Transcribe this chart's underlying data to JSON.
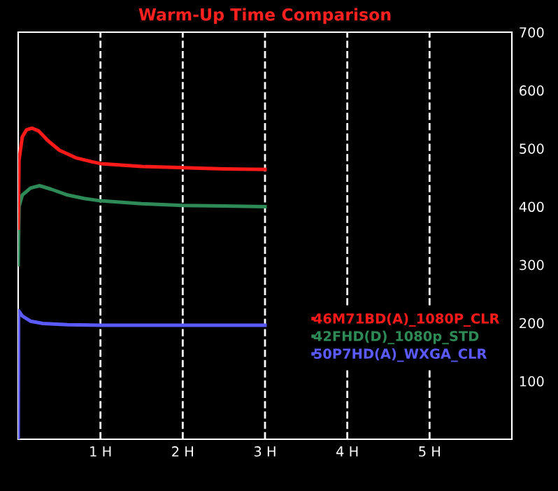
{
  "chart_data": {
    "type": "line",
    "title": "Warm-Up Time Comparison",
    "xlim": [
      0,
      6
    ],
    "xticks": [
      {
        "value": 1,
        "label": "1 H"
      },
      {
        "value": 2,
        "label": "2 H"
      },
      {
        "value": 3,
        "label": "3 H"
      },
      {
        "value": 4,
        "label": "4 H"
      },
      {
        "value": 5,
        "label": "5 H"
      }
    ],
    "ylim": [
      0,
      700
    ],
    "yticks": [
      100,
      200,
      300,
      400,
      500,
      600,
      700
    ],
    "grid": "x",
    "legend": "bottom right",
    "marker": "none",
    "line_style": "solid",
    "series": [
      {
        "name": "46M71BD(A)_1080P_CLR",
        "color": "#ff1a1a",
        "x": [
          0,
          0.01,
          0.05,
          0.1,
          0.17,
          0.25,
          0.35,
          0.5,
          0.7,
          0.9,
          1.0,
          1.5,
          2.0,
          2.5,
          3.0
        ],
        "values": [
          363,
          480,
          520,
          532,
          535,
          530,
          515,
          497,
          484,
          477,
          474,
          469,
          467,
          465,
          464
        ]
      },
      {
        "name": "42FHD(D)_1080p_STD",
        "color": "#2e8b57",
        "x": [
          0,
          0.01,
          0.05,
          0.15,
          0.26,
          0.4,
          0.6,
          0.8,
          1.0,
          1.5,
          2.0,
          2.5,
          3.0
        ],
        "values": [
          300,
          400,
          420,
          432,
          436,
          430,
          420,
          414,
          410,
          405,
          402,
          401,
          400
        ]
      },
      {
        "name": "50P7HD(A)_WXGA_CLR",
        "color": "#5a5aff",
        "x": [
          0,
          0.005,
          0.05,
          0.15,
          0.3,
          0.6,
          1.0,
          2.0,
          3.0
        ],
        "values": [
          0,
          221,
          212,
          203,
          199,
          197,
          196,
          196,
          196
        ]
      }
    ]
  }
}
